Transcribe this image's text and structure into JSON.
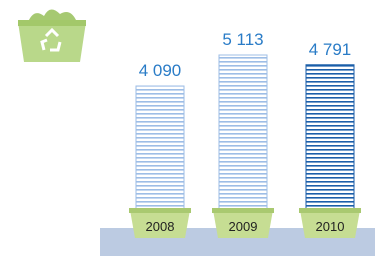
{
  "chart_data": {
    "type": "bar",
    "categories": [
      "2008",
      "2009",
      "2010"
    ],
    "values": [
      4090,
      5113,
      4791
    ],
    "value_labels": [
      "4 090",
      "5 113",
      "4 791"
    ],
    "colors": [
      "#9dbde6",
      "#9dbde6",
      "#1b5ea9"
    ]
  }
}
